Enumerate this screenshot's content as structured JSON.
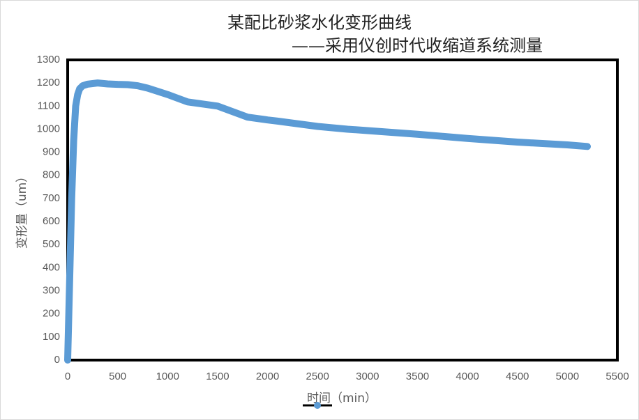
{
  "chart_data": {
    "type": "line",
    "title": "某配比砂浆水化变形曲线",
    "subtitle": "——采用仪创时代收缩道系统测量",
    "x_label": "时间（min）",
    "y_label": "变形量（um）",
    "x": [
      0,
      20,
      40,
      60,
      80,
      100,
      120,
      150,
      200,
      300,
      400,
      500,
      600,
      700,
      800,
      1000,
      1200,
      1500,
      1800,
      2000,
      2100,
      2500,
      2800,
      3000,
      3500,
      4000,
      4500,
      5000,
      5200
    ],
    "series": [
      {
        "color": "#5b9bd5",
        "values": [
          0,
          350,
          700,
          950,
          1100,
          1150,
          1175,
          1188,
          1195,
          1200,
          1196,
          1194,
          1193,
          1188,
          1178,
          1150,
          1118,
          1100,
          1052,
          1040,
          1035,
          1012,
          1000,
          994,
          978,
          960,
          944,
          932,
          925
        ]
      }
    ],
    "xlim": [
      0,
      5500
    ],
    "xticks": [
      0,
      500,
      1000,
      1500,
      2000,
      2500,
      3000,
      3500,
      4000,
      4500,
      5000,
      5500
    ],
    "ylim": [
      0,
      1300
    ],
    "yticks": [
      0,
      100,
      200,
      300,
      400,
      500,
      600,
      700,
      800,
      900,
      1000,
      1100,
      1200,
      1300
    ]
  }
}
